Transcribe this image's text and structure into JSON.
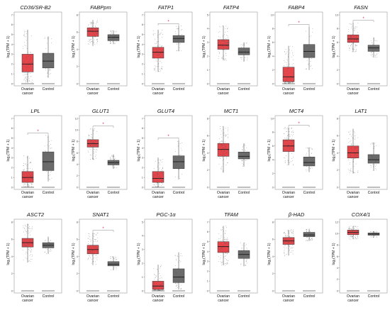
{
  "figure": {
    "y_axis_label": "log₂(TPM + 1)",
    "group_labels": [
      "Ovarian\ncancer",
      "Control"
    ],
    "colors": {
      "tumor": "#e8454b",
      "normal": "#6b6b6b",
      "points": "#555555",
      "significance": "#e0204b"
    }
  },
  "chart_data": [
    {
      "type": "boxplot",
      "title": "CD36/SR-B2",
      "significant": false,
      "ylim": [
        0,
        7
      ],
      "yticks": [
        0,
        1,
        2,
        3,
        4,
        5,
        6,
        7
      ],
      "series": [
        {
          "name": "Ovarian cancer",
          "q1": 1.2,
          "median": 2.0,
          "q3": 3.0,
          "whisker_low": 0.1,
          "whisker_high": 5.5
        },
        {
          "name": "Control",
          "q1": 1.6,
          "median": 2.3,
          "q3": 3.1,
          "whisker_low": 0.6,
          "whisker_high": 4.8
        }
      ]
    },
    {
      "type": "boxplot",
      "title": "FABPpm",
      "significant": false,
      "ylim": [
        0,
        8
      ],
      "yticks": [
        0,
        2,
        4,
        6,
        8
      ],
      "series": [
        {
          "name": "Ovarian cancer",
          "q1": 5.5,
          "median": 6.1,
          "q3": 6.5,
          "whisker_low": 4.4,
          "whisker_high": 7.4
        },
        {
          "name": "Control",
          "q1": 5.0,
          "median": 5.4,
          "q3": 5.7,
          "whisker_low": 4.6,
          "whisker_high": 6.2
        }
      ]
    },
    {
      "type": "boxplot",
      "title": "FATP1",
      "significant": true,
      "ylim": [
        0,
        7
      ],
      "yticks": [
        0,
        1,
        2,
        3,
        4,
        5,
        6,
        7
      ],
      "series": [
        {
          "name": "Ovarian cancer",
          "q1": 2.6,
          "median": 3.2,
          "q3": 3.7,
          "whisker_low": 1.2,
          "whisker_high": 5.5
        },
        {
          "name": "Control",
          "q1": 4.2,
          "median": 4.6,
          "q3": 4.9,
          "whisker_low": 3.3,
          "whisker_high": 5.9
        }
      ]
    },
    {
      "type": "boxplot",
      "title": "FATP4",
      "significant": false,
      "ylim": [
        0,
        5
      ],
      "yticks": [
        0,
        1,
        2,
        3,
        4,
        5
      ],
      "series": [
        {
          "name": "Ovarian cancer",
          "q1": 2.5,
          "median": 2.8,
          "q3": 3.2,
          "whisker_low": 1.7,
          "whisker_high": 4.2
        },
        {
          "name": "Control",
          "q1": 2.1,
          "median": 2.3,
          "q3": 2.6,
          "whisker_low": 1.6,
          "whisker_high": 3.0
        }
      ]
    },
    {
      "type": "boxplot",
      "title": "FABP4",
      "significant": true,
      "ylim": [
        0,
        10
      ],
      "yticks": [
        0,
        2,
        4,
        6,
        8,
        10
      ],
      "series": [
        {
          "name": "Ovarian cancer",
          "q1": 0.3,
          "median": 1.0,
          "q3": 2.4,
          "whisker_low": 0.0,
          "whisker_high": 5.5
        },
        {
          "name": "Control",
          "q1": 3.8,
          "median": 4.7,
          "q3": 5.7,
          "whisker_low": 2.0,
          "whisker_high": 8.3
        }
      ]
    },
    {
      "type": "boxplot",
      "title": "FASN",
      "significant": true,
      "ylim": [
        0,
        10
      ],
      "yticks": [
        0,
        2,
        4,
        6,
        8,
        10
      ],
      "series": [
        {
          "name": "Ovarian cancer",
          "q1": 6.0,
          "median": 6.5,
          "q3": 7.1,
          "whisker_low": 4.6,
          "whisker_high": 8.9
        },
        {
          "name": "Control",
          "q1": 4.7,
          "median": 5.2,
          "q3": 5.6,
          "whisker_low": 3.8,
          "whisker_high": 6.7
        }
      ]
    },
    {
      "type": "boxplot",
      "title": "LPL",
      "significant": true,
      "ylim": [
        0,
        7
      ],
      "yticks": [
        0,
        1,
        2,
        3,
        4,
        5,
        6,
        7
      ],
      "series": [
        {
          "name": "Ovarian cancer",
          "q1": 0.5,
          "median": 1.0,
          "q3": 1.6,
          "whisker_low": 0.0,
          "whisker_high": 3.2
        },
        {
          "name": "Control",
          "q1": 1.7,
          "median": 2.6,
          "q3": 3.6,
          "whisker_low": 0.6,
          "whisker_high": 5.3
        }
      ]
    },
    {
      "type": "boxplot",
      "title": "GLUT1",
      "significant": true,
      "ylim": [
        0,
        12
      ],
      "yticks": [
        0,
        2,
        4,
        6,
        8,
        10,
        12
      ],
      "series": [
        {
          "name": "Ovarian cancer",
          "q1": 7.0,
          "median": 7.6,
          "q3": 8.3,
          "whisker_low": 4.8,
          "whisker_high": 10.3
        },
        {
          "name": "Control",
          "q1": 3.9,
          "median": 4.3,
          "q3": 4.7,
          "whisker_low": 3.2,
          "whisker_high": 5.7
        }
      ]
    },
    {
      "type": "boxplot",
      "title": "GLUT4",
      "significant": true,
      "ylim": [
        0,
        7
      ],
      "yticks": [
        0,
        1,
        2,
        3,
        4,
        5,
        6,
        7
      ],
      "series": [
        {
          "name": "Ovarian cancer",
          "q1": 0.5,
          "median": 0.9,
          "q3": 1.6,
          "whisker_low": 0.0,
          "whisker_high": 3.0
        },
        {
          "name": "Control",
          "q1": 1.9,
          "median": 2.6,
          "q3": 3.2,
          "whisker_low": 0.8,
          "whisker_high": 4.8
        }
      ]
    },
    {
      "type": "boxplot",
      "title": "MCT1",
      "significant": false,
      "ylim": [
        0,
        8
      ],
      "yticks": [
        0,
        2,
        4,
        6,
        8
      ],
      "series": [
        {
          "name": "Ovarian cancer",
          "q1": 3.6,
          "median": 4.4,
          "q3": 5.1,
          "whisker_low": 1.7,
          "whisker_high": 7.1
        },
        {
          "name": "Control",
          "q1": 3.3,
          "median": 3.6,
          "q3": 4.1,
          "whisker_low": 2.4,
          "whisker_high": 5.1
        }
      ]
    },
    {
      "type": "boxplot",
      "title": "MCT4",
      "significant": true,
      "ylim": [
        0,
        10
      ],
      "yticks": [
        0,
        2,
        4,
        6,
        8,
        10
      ],
      "series": [
        {
          "name": "Ovarian cancer",
          "q1": 5.2,
          "median": 6.0,
          "q3": 6.9,
          "whisker_low": 3.2,
          "whisker_high": 8.7
        },
        {
          "name": "Control",
          "q1": 3.1,
          "median": 3.6,
          "q3": 4.4,
          "whisker_low": 2.2,
          "whisker_high": 5.8
        }
      ]
    },
    {
      "type": "boxplot",
      "title": "LAT1",
      "significant": false,
      "ylim": [
        0,
        8
      ],
      "yticks": [
        0,
        2,
        4,
        6,
        8
      ],
      "series": [
        {
          "name": "Ovarian cancer",
          "q1": 3.4,
          "median": 4.0,
          "q3": 4.8,
          "whisker_low": 1.6,
          "whisker_high": 6.8
        },
        {
          "name": "Control",
          "q1": 2.8,
          "median": 3.2,
          "q3": 3.8,
          "whisker_low": 1.9,
          "whisker_high": 5.2
        }
      ]
    },
    {
      "type": "boxplot",
      "title": "ASCT2",
      "significant": false,
      "ylim": [
        0,
        8
      ],
      "yticks": [
        0,
        2,
        4,
        6,
        8
      ],
      "series": [
        {
          "name": "Ovarian cancer",
          "q1": 5.1,
          "median": 5.6,
          "q3": 6.1,
          "whisker_low": 3.3,
          "whisker_high": 7.8
        },
        {
          "name": "Control",
          "q1": 5.0,
          "median": 5.3,
          "q3": 5.6,
          "whisker_low": 4.3,
          "whisker_high": 6.3
        }
      ]
    },
    {
      "type": "boxplot",
      "title": "SNAT1",
      "significant": true,
      "ylim": [
        0,
        8
      ],
      "yticks": [
        0,
        2,
        4,
        6,
        8
      ],
      "series": [
        {
          "name": "Ovarian cancer",
          "q1": 4.3,
          "median": 4.8,
          "q3": 5.3,
          "whisker_low": 3.0,
          "whisker_high": 6.8
        },
        {
          "name": "Control",
          "q1": 2.9,
          "median": 3.1,
          "q3": 3.4,
          "whisker_low": 2.4,
          "whisker_high": 4.0
        }
      ]
    },
    {
      "type": "boxplot",
      "title": "PGC-1α",
      "significant": false,
      "ylim": [
        0,
        5
      ],
      "yticks": [
        0,
        1,
        2,
        3,
        4,
        5
      ],
      "series": [
        {
          "name": "Ovarian cancer",
          "q1": 0.1,
          "median": 0.35,
          "q3": 0.7,
          "whisker_low": 0.0,
          "whisker_high": 1.9
        },
        {
          "name": "Control",
          "q1": 0.6,
          "median": 1.0,
          "q3": 1.6,
          "whisker_low": 0.1,
          "whisker_high": 2.8
        }
      ]
    },
    {
      "type": "boxplot",
      "title": "TFAM",
      "significant": false,
      "ylim": [
        0,
        7
      ],
      "yticks": [
        0,
        1,
        2,
        3,
        4,
        5,
        6,
        7
      ],
      "series": [
        {
          "name": "Ovarian cancer",
          "q1": 3.9,
          "median": 4.5,
          "q3": 5.0,
          "whisker_low": 2.6,
          "whisker_high": 6.6
        },
        {
          "name": "Control",
          "q1": 3.3,
          "median": 3.7,
          "q3": 4.1,
          "whisker_low": 2.5,
          "whisker_high": 4.9
        }
      ]
    },
    {
      "type": "boxplot",
      "title": "β-HAD",
      "significant": false,
      "ylim": [
        0,
        8
      ],
      "yticks": [
        0,
        2,
        4,
        6,
        8
      ],
      "series": [
        {
          "name": "Ovarian cancer",
          "q1": 5.4,
          "median": 5.8,
          "q3": 6.2,
          "whisker_low": 4.1,
          "whisker_high": 7.1
        },
        {
          "name": "Control",
          "q1": 6.3,
          "median": 6.5,
          "q3": 6.8,
          "whisker_low": 5.8,
          "whisker_high": 7.2
        }
      ]
    },
    {
      "type": "boxplot",
      "title": "COX4/1",
      "significant": false,
      "ylim": [
        0,
        12
      ],
      "yticks": [
        0,
        2,
        4,
        6,
        8,
        10,
        12
      ],
      "series": [
        {
          "name": "Ovarian cancer",
          "q1": 9.8,
          "median": 10.2,
          "q3": 10.6,
          "whisker_low": 9.0,
          "whisker_high": 11.3
        },
        {
          "name": "Control",
          "q1": 9.7,
          "median": 9.9,
          "q3": 10.1,
          "whisker_low": 9.3,
          "whisker_high": 10.4
        }
      ]
    }
  ]
}
